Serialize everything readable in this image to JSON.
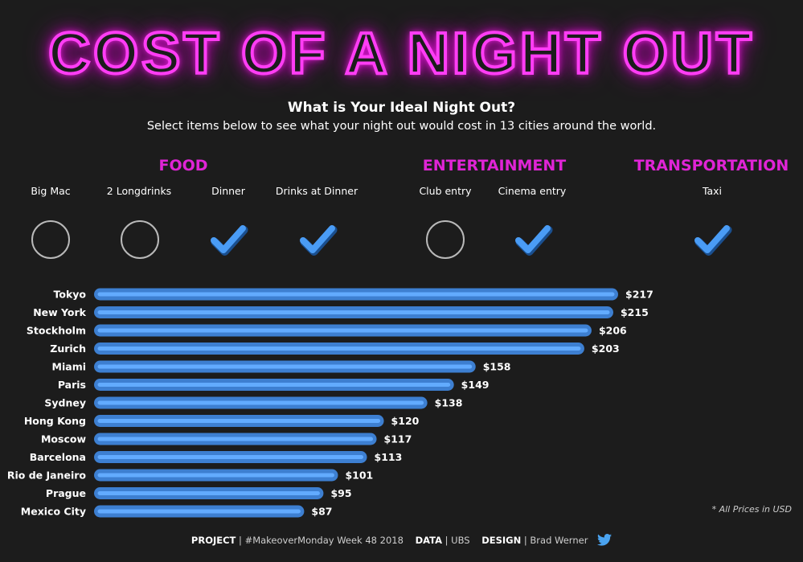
{
  "header": {
    "title": "COST OF A NIGHT OUT",
    "subtitle": "What is Your Ideal Night Out?",
    "instructions": "Select items below to see what your night out would cost in 13 cities around the world."
  },
  "categories": {
    "food": "FOOD",
    "entertainment": "ENTERTAINMENT",
    "transportation": "TRANSPORTATION"
  },
  "items": [
    {
      "label": "Big Mac",
      "checked": false
    },
    {
      "label": "2 Longdrinks",
      "checked": false
    },
    {
      "label": "Dinner",
      "checked": true
    },
    {
      "label": "Drinks at Dinner",
      "checked": true
    },
    {
      "label": "Club entry",
      "checked": false
    },
    {
      "label": "Cinema entry",
      "checked": true
    },
    {
      "label": "Taxi",
      "checked": true
    }
  ],
  "colors": {
    "background": "#1c1c1c",
    "bar": "#3d7fd1",
    "bar_highlight": "#62abff",
    "accent": "#e024d6",
    "check": "#4a9cf5"
  },
  "icons": {
    "checked": "checkmark-icon",
    "unchecked": "empty-circle-icon",
    "social": "twitter-icon"
  },
  "chart_data": {
    "type": "bar",
    "orientation": "horizontal",
    "categories": [
      "Tokyo",
      "New York",
      "Stockholm",
      "Zurich",
      "Miami",
      "Paris",
      "Sydney",
      "Hong Kong",
      "Moscow",
      "Barcelona",
      "Rio de Janeiro",
      "Prague",
      "Mexico City"
    ],
    "values": [
      217,
      215,
      206,
      203,
      158,
      149,
      138,
      120,
      117,
      113,
      101,
      95,
      87
    ],
    "value_labels": [
      "$217",
      "$215",
      "$206",
      "$203",
      "$158",
      "$149",
      "$138",
      "$120",
      "$117",
      "$113",
      "$101",
      "$95",
      "$87"
    ],
    "xlim": [
      0,
      220
    ],
    "grid": false,
    "note": "* All Prices in USD"
  },
  "footer": {
    "project_label": "PROJECT",
    "project_value": "#MakeoverMonday Week 48 2018",
    "data_label": "DATA",
    "data_value": "UBS",
    "design_label": "DESIGN",
    "design_value": "Brad Werner",
    "separator": "|"
  }
}
